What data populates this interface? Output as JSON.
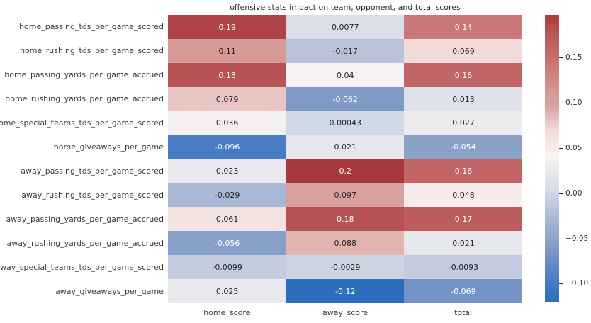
{
  "chart_data": {
    "type": "heatmap",
    "title": "offensive stats impact on team, opponent, and total scores",
    "rows": [
      "home_passing_tds_per_game_scored",
      "home_rushing_tds_per_game_scored",
      "home_passing_yards_per_game_accrued",
      "home_rushing_yards_per_game_accrued",
      "home_special_teams_tds_per_game_scored",
      "home_giveaways_per_game",
      "away_passing_tds_per_game_scored",
      "away_rushing_tds_per_game_scored",
      "away_passing_yards_per_game_accrued",
      "away_rushing_yards_per_game_accrued",
      "away_special_teams_tds_per_game_scored",
      "away_giveaways_per_game"
    ],
    "columns": [
      "home_score",
      "away_score",
      "total"
    ],
    "values": [
      [
        0.19,
        0.0077,
        0.14
      ],
      [
        0.11,
        -0.017,
        0.069
      ],
      [
        0.18,
        0.04,
        0.16
      ],
      [
        0.079,
        -0.062,
        0.013
      ],
      [
        0.036,
        0.00043,
        0.027
      ],
      [
        -0.096,
        0.021,
        -0.054
      ],
      [
        0.023,
        0.2,
        0.16
      ],
      [
        -0.029,
        0.097,
        0.048
      ],
      [
        0.061,
        0.18,
        0.17
      ],
      [
        -0.056,
        0.088,
        0.021
      ],
      [
        -0.0099,
        -0.0029,
        -0.0093
      ],
      [
        0.025,
        -0.12,
        -0.069
      ]
    ],
    "cell_labels": [
      [
        "0.19",
        "0.0077",
        "0.14"
      ],
      [
        "0.11",
        "-0.017",
        "0.069"
      ],
      [
        "0.18",
        "0.04",
        "0.16"
      ],
      [
        "0.079",
        "-0.062",
        "0.013"
      ],
      [
        "0.036",
        "0.00043",
        "0.027"
      ],
      [
        "-0.096",
        "0.021",
        "-0.054"
      ],
      [
        "0.023",
        "0.2",
        "0.16"
      ],
      [
        "-0.029",
        "0.097",
        "0.048"
      ],
      [
        "0.061",
        "0.18",
        "0.17"
      ],
      [
        "-0.056",
        "0.088",
        "0.021"
      ],
      [
        "-0.0099",
        "-0.0029",
        "-0.0093"
      ],
      [
        "0.025",
        "-0.12",
        "-0.069"
      ]
    ],
    "vmin": -0.1208,
    "vmax": 0.1969,
    "colorbar": {
      "tick_labels": [
        "0.15",
        "0.10",
        "0.05",
        "0.00",
        "−0.05",
        "−0.10"
      ],
      "tick_values": [
        0.15,
        0.1,
        0.05,
        0.0,
        -0.05,
        -0.1
      ]
    },
    "colormap_stops": [
      [
        0.0,
        43,
        110,
        189
      ],
      [
        0.078,
        74,
        124,
        195
      ],
      [
        0.185,
        128,
        153,
        199
      ],
      [
        0.289,
        169,
        184,
        212
      ],
      [
        0.404,
        218,
        222,
        233
      ],
      [
        0.506,
        248,
        243,
        242
      ],
      [
        0.597,
        243,
        219,
        217
      ],
      [
        0.686,
        216,
        160,
        158
      ],
      [
        0.727,
        214,
        154,
        150
      ],
      [
        0.821,
        202,
        120,
        119
      ],
      [
        0.947,
        184,
        82,
        84
      ],
      [
        1.0,
        170,
        57,
        61
      ]
    ],
    "annotation_text_colors": {
      "dark": "#262626",
      "light": "#ffffff"
    },
    "white_text_rule": {
      "low_t": 0.22,
      "high_t": 0.81
    },
    "layout_hints": {
      "legend_position": "right-colorbar",
      "grid": "off"
    }
  }
}
